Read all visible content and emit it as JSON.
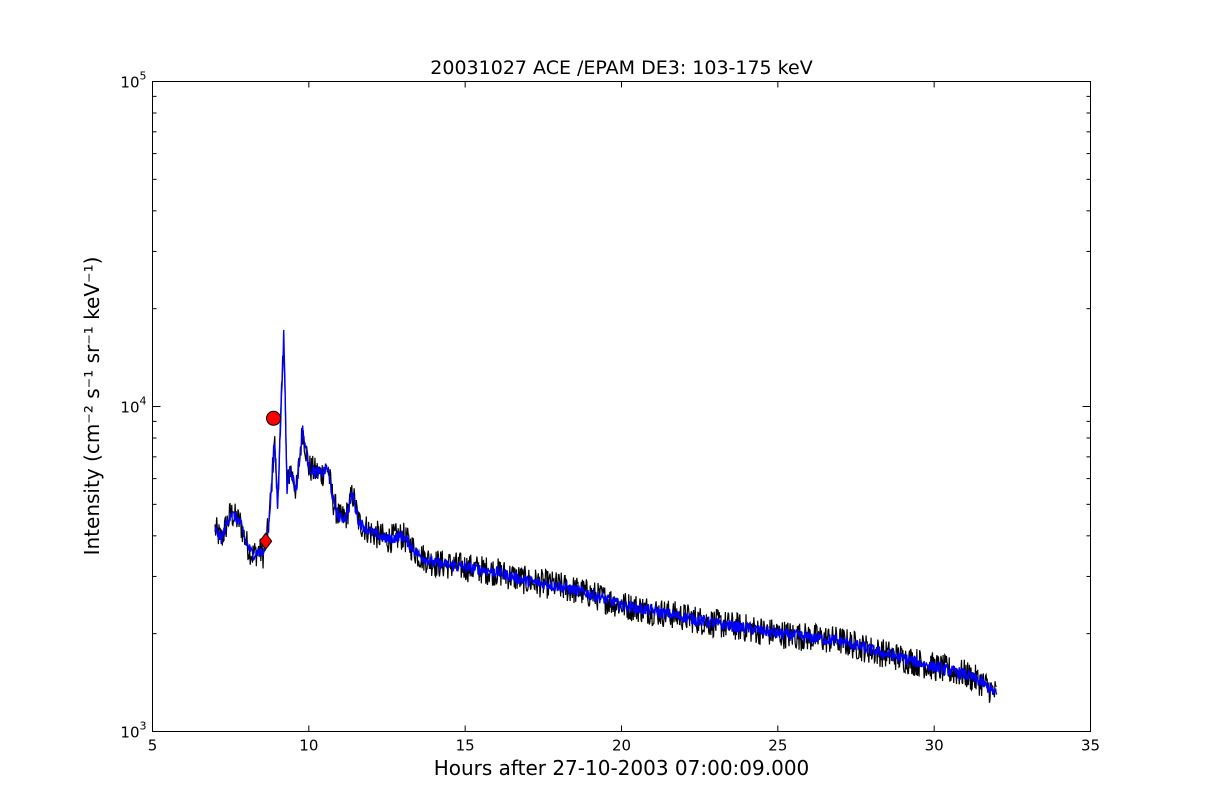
{
  "chart_data": {
    "type": "line",
    "title": "20031027 ACE /EPAM DE3: 103-175 keV",
    "xlabel": "Hours after 27-10-2003 07:00:09.000",
    "ylabel": "Intensity (cm⁻² s⁻¹ sr⁻¹ keV⁻¹)",
    "xlim": [
      5,
      35
    ],
    "ylim": [
      1000,
      100000
    ],
    "yscale": "log",
    "grid": false,
    "xticks": [
      5,
      10,
      15,
      20,
      25,
      30,
      35
    ],
    "yticks": [
      1000,
      10000,
      100000
    ],
    "series": [
      {
        "color": "#000000",
        "noise": "high",
        "x": [
          7.0,
          7.2,
          7.5,
          7.8,
          8.0,
          8.2,
          8.4,
          8.55,
          8.7,
          8.8,
          8.9,
          9.0,
          9.1,
          9.2,
          9.3,
          9.4,
          9.6,
          9.8,
          10.0,
          10.2,
          10.4,
          10.6,
          10.8,
          11.0,
          11.2,
          11.4,
          11.6,
          12.0,
          12.5,
          13.0,
          13.5,
          14.0,
          15.0,
          16.0,
          17.0,
          18.0,
          19.0,
          20.0,
          21.0,
          22.0,
          23.0,
          24.0,
          25.0,
          26.0,
          27.0,
          28.0,
          29.0,
          30.0,
          31.0,
          31.5,
          32.0
        ],
        "y": [
          4200,
          3900,
          4700,
          4400,
          3800,
          3500,
          3600,
          3500,
          4200,
          5500,
          8000,
          5000,
          9000,
          17000,
          5500,
          6500,
          5500,
          8500,
          6500,
          6300,
          6200,
          6500,
          5000,
          4500,
          4600,
          5400,
          4400,
          4100,
          3900,
          4000,
          3500,
          3300,
          3200,
          3100,
          2900,
          2800,
          2650,
          2450,
          2350,
          2250,
          2150,
          2080,
          2000,
          1950,
          1900,
          1780,
          1680,
          1580,
          1500,
          1420,
          1300
        ]
      },
      {
        "color": "#0000ff",
        "noise": "low",
        "x": [
          7.0,
          7.2,
          7.5,
          7.8,
          8.0,
          8.2,
          8.4,
          8.55,
          8.7,
          8.8,
          8.9,
          9.0,
          9.1,
          9.2,
          9.3,
          9.4,
          9.6,
          9.8,
          10.0,
          10.2,
          10.4,
          10.6,
          10.8,
          11.0,
          11.2,
          11.4,
          11.6,
          12.0,
          12.5,
          13.0,
          13.5,
          14.0,
          15.0,
          16.0,
          17.0,
          18.0,
          19.0,
          20.0,
          21.0,
          22.0,
          23.0,
          24.0,
          25.0,
          26.0,
          27.0,
          28.0,
          29.0,
          30.0,
          31.0,
          31.5,
          32.0
        ],
        "y": [
          4200,
          3900,
          4700,
          4400,
          3800,
          3500,
          3600,
          3500,
          4200,
          5500,
          8000,
          5000,
          9000,
          17000,
          5500,
          6500,
          5500,
          8500,
          6500,
          6300,
          6200,
          6500,
          5000,
          4500,
          4600,
          5400,
          4400,
          4100,
          3900,
          4000,
          3500,
          3300,
          3200,
          3100,
          2900,
          2800,
          2650,
          2450,
          2350,
          2250,
          2150,
          2080,
          2000,
          1950,
          1900,
          1780,
          1680,
          1580,
          1500,
          1420,
          1300
        ]
      }
    ],
    "markers": [
      {
        "shape": "circle",
        "color": "#ff0000",
        "x": 8.87,
        "y": 9200
      },
      {
        "shape": "diamond",
        "color": "#ff0000",
        "x": 8.62,
        "y": 3850
      }
    ]
  }
}
